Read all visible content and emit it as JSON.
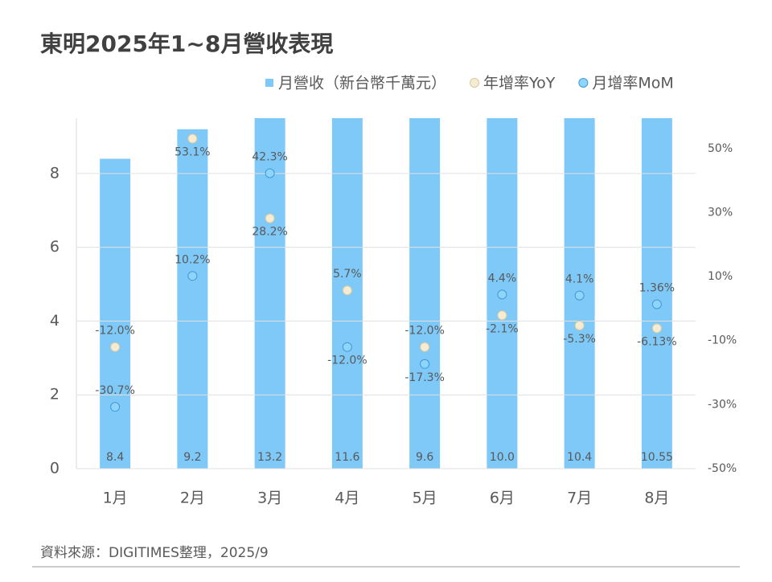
{
  "chart_data": {
    "type": "bar",
    "title": "東明2025年1~8月營收表現",
    "source": "資料來源：DIGITIMES整理，2025/9",
    "categories": [
      "1月",
      "2月",
      "3月",
      "4月",
      "5月",
      "6月",
      "7月",
      "8月"
    ],
    "ylim": [
      0,
      9.5
    ],
    "yticks": [
      0,
      2,
      4,
      6,
      8
    ],
    "y2lim": [
      -50,
      59.5
    ],
    "y2ticks": [
      {
        "value": -50,
        "label": "-50%"
      },
      {
        "value": -30,
        "label": "-30%"
      },
      {
        "value": -10,
        "label": "-10%"
      },
      {
        "value": 10,
        "label": "10%"
      },
      {
        "value": 30,
        "label": "30%"
      },
      {
        "value": 50,
        "label": "50%"
      }
    ],
    "grid": true,
    "series": [
      {
        "name": "月營收（新台幣千萬元）",
        "type": "bar",
        "color": "#7fc9f8",
        "values": [
          8.4,
          9.2,
          13.2,
          11.6,
          9.6,
          10.0,
          10.4,
          10.55
        ],
        "value_labels": [
          "8.4",
          "9.2",
          "13.2",
          "11.6",
          "9.6",
          "10.0",
          "10.4",
          "10.55"
        ]
      },
      {
        "name": "年增率YoY",
        "type": "scatter",
        "axis": "y2",
        "color": "#f6ecd3",
        "values": [
          -12.0,
          53.1,
          28.2,
          5.7,
          -12.0,
          -2.1,
          -5.3,
          -6.13
        ],
        "value_labels": [
          "-12.0%",
          "53.1%",
          "28.2%",
          "5.7%",
          "-12.0%",
          "-2.1%",
          "-5.3%",
          "-6.13%"
        ]
      },
      {
        "name": "月增率MoM",
        "type": "scatter",
        "axis": "y2",
        "color": "#8fd4fb",
        "values": [
          -30.7,
          10.2,
          42.3,
          -12.0,
          -17.3,
          4.4,
          4.1,
          1.36
        ],
        "value_labels": [
          "-30.7%",
          "10.2%",
          "42.3%",
          "-12.0%",
          "-17.3%",
          "4.4%",
          "4.1%",
          "1.36%"
        ]
      }
    ]
  }
}
